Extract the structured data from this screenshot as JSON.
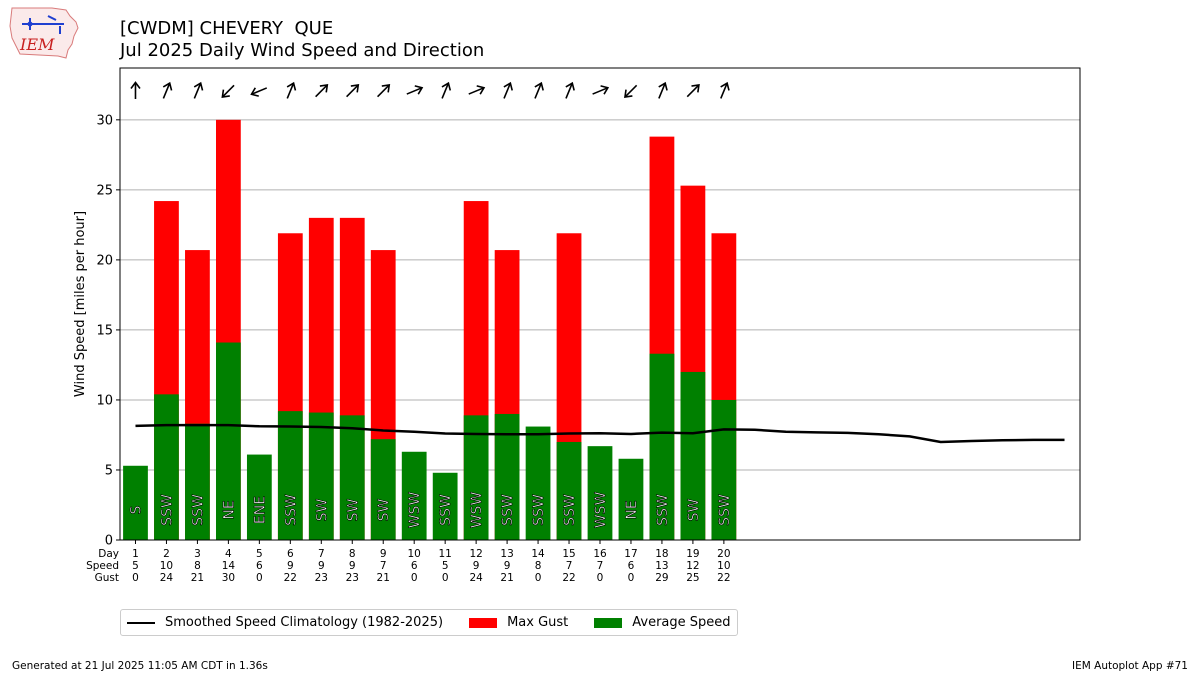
{
  "header": {
    "logo_text": "IEM",
    "title_line1": "[CWDM] CHEVERY  QUE",
    "title_line2": "Jul 2025 Daily Wind Speed and Direction"
  },
  "footer": {
    "generated": "Generated at 21 Jul 2025 11:05 AM CDT in 1.36s",
    "app": "IEM Autoplot App #71"
  },
  "legend": {
    "climatology": "Smoothed Speed Climatology (1982-2025)",
    "gust": "Max Gust",
    "avg": "Average Speed"
  },
  "colors": {
    "gust": "#ff0000",
    "avg": "#008000",
    "climatology": "#000000",
    "grid": "#b0b0b0"
  },
  "chart_data": {
    "type": "bar",
    "ylabel": "Wind Speed [miles per hour]",
    "ylim": [
      0,
      33.7
    ],
    "xlim": [
      0.5,
      31.5
    ],
    "yticks": [
      0,
      5,
      10,
      15,
      20,
      25,
      30
    ],
    "grid": "horizontal",
    "legend_position": "bottom-left",
    "row_labels": [
      "Day",
      "Speed",
      "Gust"
    ],
    "days": [
      1,
      2,
      3,
      4,
      5,
      6,
      7,
      8,
      9,
      10,
      11,
      12,
      13,
      14,
      15,
      16,
      17,
      18,
      19,
      20
    ],
    "speed_labels": [
      5,
      10,
      8,
      14,
      6,
      9,
      9,
      9,
      7,
      6,
      5,
      9,
      9,
      8,
      7,
      7,
      6,
      13,
      12,
      10
    ],
    "gust_labels": [
      0,
      24,
      21,
      30,
      0,
      22,
      23,
      23,
      21,
      0,
      0,
      24,
      21,
      0,
      22,
      0,
      0,
      29,
      25,
      22
    ],
    "series": [
      {
        "name": "Average Speed",
        "values": [
          5.3,
          10.4,
          8.3,
          14.1,
          6.1,
          9.2,
          9.1,
          8.9,
          7.2,
          6.3,
          4.8,
          8.9,
          9.0,
          8.1,
          7.0,
          6.7,
          5.8,
          13.3,
          12.0,
          10.0
        ]
      },
      {
        "name": "Max Gust",
        "values": [
          0,
          24.2,
          20.7,
          30.0,
          0,
          21.9,
          23.0,
          23.0,
          20.7,
          0,
          0,
          24.2,
          20.7,
          0,
          21.9,
          0,
          0,
          28.8,
          25.3,
          21.9
        ]
      }
    ],
    "directions": [
      "S",
      "SSW",
      "SSW",
      "NE",
      "ENE",
      "SSW",
      "SW",
      "SW",
      "SW",
      "WSW",
      "SSW",
      "WSW",
      "SSW",
      "SSW",
      "SSW",
      "WSW",
      "NE",
      "SSW",
      "SW",
      "SSW"
    ],
    "climatology": {
      "days": [
        1,
        2,
        3,
        4,
        5,
        6,
        7,
        8,
        9,
        10,
        11,
        12,
        13,
        14,
        15,
        16,
        17,
        18,
        19,
        20,
        21,
        22,
        23,
        24,
        25,
        26,
        27,
        28,
        29,
        30,
        31
      ],
      "values": [
        8.15,
        8.2,
        8.2,
        8.2,
        8.12,
        8.1,
        8.07,
        7.98,
        7.82,
        7.73,
        7.6,
        7.57,
        7.55,
        7.55,
        7.6,
        7.62,
        7.57,
        7.67,
        7.62,
        7.9,
        7.87,
        7.73,
        7.68,
        7.65,
        7.55,
        7.4,
        7.0,
        7.07,
        7.12,
        7.15,
        7.15
      ]
    }
  }
}
